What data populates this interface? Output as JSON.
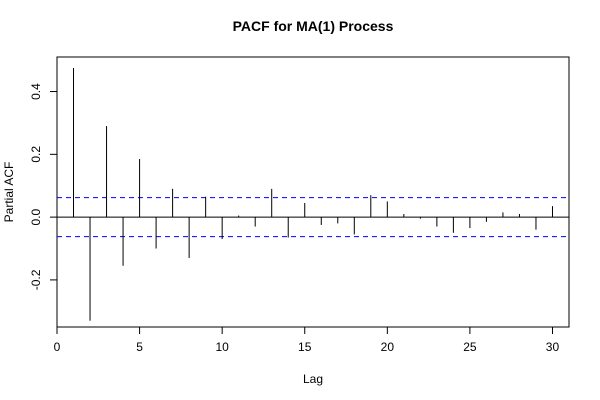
{
  "chart_data": {
    "type": "bar",
    "title": "PACF for MA(1) Process",
    "xlabel": "Lag",
    "ylabel": "Partial ACF",
    "xlim": [
      0,
      31
    ],
    "ylim": [
      -0.35,
      0.51
    ],
    "x_ticks": [
      0,
      5,
      10,
      15,
      20,
      25,
      30
    ],
    "x_tick_labels": [
      "0",
      "5",
      "10",
      "15",
      "20",
      "25",
      "30"
    ],
    "y_ticks": [
      -0.2,
      0.0,
      0.2,
      0.4
    ],
    "y_tick_labels": [
      "-0.2",
      "0.0",
      "0.2",
      "0.4"
    ],
    "confidence_bound": 0.062,
    "grid": false,
    "legend": "none",
    "series": [
      {
        "lags": [
          1,
          2,
          3,
          4,
          5,
          6,
          7,
          8,
          9,
          10,
          11,
          12,
          13,
          14,
          15,
          16,
          17,
          18,
          19,
          20,
          21,
          22,
          23,
          24,
          25,
          26,
          27,
          28,
          29,
          30
        ],
        "values": [
          0.475,
          -0.33,
          0.29,
          -0.155,
          0.185,
          -0.1,
          0.09,
          -0.13,
          0.065,
          -0.07,
          0.005,
          -0.03,
          0.09,
          -0.065,
          0.045,
          -0.025,
          -0.02,
          -0.055,
          0.07,
          0.05,
          0.01,
          -0.005,
          -0.03,
          -0.05,
          -0.035,
          -0.015,
          0.015,
          0.01,
          -0.04,
          0.035
        ]
      }
    ],
    "colors": {
      "bars": "#000000",
      "confidence": "#0000ff",
      "zero_line": "#000000",
      "box": "#000000"
    }
  }
}
